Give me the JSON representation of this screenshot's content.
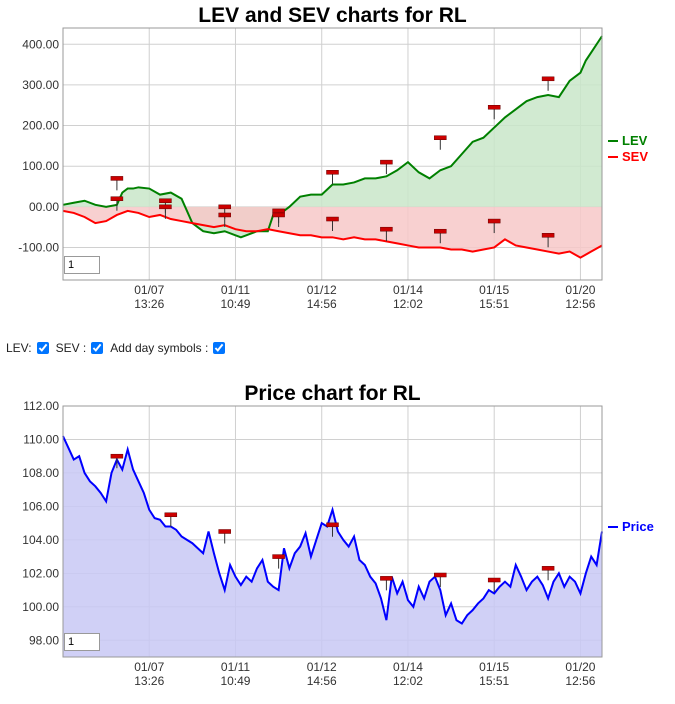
{
  "controls": {
    "lev_label": "LEV:",
    "sev_label": "SEV :",
    "day_label": "Add day symbols :",
    "lev_checked": true,
    "sev_checked": true,
    "day_checked": true
  },
  "chart_data": [
    {
      "type": "area",
      "title": "LEV and SEV charts for RL",
      "xlabel": "",
      "ylabel": "",
      "ylim": [
        -180,
        440
      ],
      "yticks": [
        "400.00",
        "300.00",
        "200.00",
        "100.00",
        "00.00",
        "-100.00"
      ],
      "ytick_values": [
        400,
        300,
        200,
        100,
        0,
        -100
      ],
      "x_ticks": [
        {
          "pos": 0.16,
          "date": "01/07",
          "time": "13:26"
        },
        {
          "pos": 0.32,
          "date": "01/11",
          "time": "10:49"
        },
        {
          "pos": 0.48,
          "date": "01/12",
          "time": "14:56"
        },
        {
          "pos": 0.64,
          "date": "01/14",
          "time": "12:02"
        },
        {
          "pos": 0.8,
          "date": "01/15",
          "time": "15:51"
        },
        {
          "pos": 0.96,
          "date": "01/20",
          "time": "12:56"
        }
      ],
      "legend_position": "right",
      "zoom_value": "1",
      "series": [
        {
          "name": "LEV",
          "color": "#008000",
          "fill": "#c9e6c9",
          "x": [
            0,
            0.02,
            0.04,
            0.06,
            0.08,
            0.1,
            0.11,
            0.12,
            0.13,
            0.14,
            0.16,
            0.18,
            0.2,
            0.22,
            0.24,
            0.25,
            0.26,
            0.28,
            0.3,
            0.32,
            0.33,
            0.34,
            0.36,
            0.38,
            0.39,
            0.4,
            0.42,
            0.44,
            0.46,
            0.48,
            0.5,
            0.52,
            0.54,
            0.56,
            0.58,
            0.6,
            0.62,
            0.64,
            0.66,
            0.68,
            0.7,
            0.72,
            0.74,
            0.76,
            0.78,
            0.8,
            0.82,
            0.84,
            0.86,
            0.88,
            0.9,
            0.92,
            0.94,
            0.96,
            0.97,
            0.98,
            1.0
          ],
          "y": [
            5,
            10,
            15,
            5,
            0,
            5,
            35,
            45,
            45,
            48,
            45,
            30,
            35,
            20,
            -40,
            -50,
            -60,
            -65,
            -60,
            -70,
            -75,
            -70,
            -60,
            -60,
            -20,
            -20,
            0,
            25,
            30,
            30,
            55,
            55,
            60,
            70,
            70,
            75,
            90,
            110,
            85,
            70,
            90,
            100,
            130,
            160,
            170,
            195,
            220,
            240,
            260,
            270,
            275,
            270,
            310,
            330,
            360,
            380,
            420
          ]
        },
        {
          "name": "SEV",
          "color": "#ff0000",
          "fill": "#f7c8c8",
          "x": [
            0,
            0.02,
            0.04,
            0.06,
            0.08,
            0.1,
            0.12,
            0.14,
            0.16,
            0.18,
            0.2,
            0.22,
            0.24,
            0.26,
            0.28,
            0.3,
            0.32,
            0.34,
            0.36,
            0.38,
            0.4,
            0.42,
            0.44,
            0.46,
            0.48,
            0.5,
            0.52,
            0.54,
            0.56,
            0.58,
            0.6,
            0.62,
            0.64,
            0.66,
            0.68,
            0.7,
            0.72,
            0.74,
            0.76,
            0.78,
            0.8,
            0.82,
            0.84,
            0.86,
            0.88,
            0.9,
            0.92,
            0.94,
            0.96,
            0.98,
            1.0
          ],
          "y": [
            -10,
            -15,
            -25,
            -40,
            -35,
            -20,
            -10,
            -15,
            -25,
            -20,
            -30,
            -35,
            -40,
            -45,
            -50,
            -45,
            -55,
            -60,
            -60,
            -55,
            -60,
            -65,
            -70,
            -70,
            -75,
            -75,
            -80,
            -75,
            -80,
            -80,
            -85,
            -90,
            -95,
            -100,
            -100,
            -100,
            -105,
            -105,
            -110,
            -105,
            -100,
            -80,
            -95,
            -100,
            -105,
            -110,
            -115,
            -110,
            -125,
            -110,
            -95
          ]
        }
      ],
      "markers": {
        "color": "#cc0000",
        "points": [
          [
            0.1,
            70
          ],
          [
            0.1,
            20
          ],
          [
            0.19,
            15
          ],
          [
            0.19,
            0
          ],
          [
            0.3,
            0
          ],
          [
            0.3,
            -20
          ],
          [
            0.4,
            -10
          ],
          [
            0.4,
            -20
          ],
          [
            0.5,
            -30
          ],
          [
            0.5,
            85
          ],
          [
            0.6,
            -55
          ],
          [
            0.6,
            110
          ],
          [
            0.7,
            -60
          ],
          [
            0.7,
            170
          ],
          [
            0.8,
            -35
          ],
          [
            0.8,
            245
          ],
          [
            0.9,
            -70
          ],
          [
            0.9,
            315
          ]
        ]
      }
    },
    {
      "type": "area",
      "title": "Price chart for RL",
      "xlabel": "",
      "ylabel": "",
      "ylim": [
        97,
        112
      ],
      "yticks": [
        "112.00",
        "110.00",
        "108.00",
        "106.00",
        "104.00",
        "102.00",
        "100.00",
        "98.00"
      ],
      "ytick_values": [
        112,
        110,
        108,
        106,
        104,
        102,
        100,
        98
      ],
      "x_ticks": [
        {
          "pos": 0.16,
          "date": "01/07",
          "time": "13:26"
        },
        {
          "pos": 0.32,
          "date": "01/11",
          "time": "10:49"
        },
        {
          "pos": 0.48,
          "date": "01/12",
          "time": "14:56"
        },
        {
          "pos": 0.64,
          "date": "01/14",
          "time": "12:02"
        },
        {
          "pos": 0.8,
          "date": "01/15",
          "time": "15:51"
        },
        {
          "pos": 0.96,
          "date": "01/20",
          "time": "12:56"
        }
      ],
      "legend_position": "right",
      "zoom_value": "1",
      "series": [
        {
          "name": "Price",
          "color": "#0000ff",
          "fill": "#c8c8f5",
          "x": [
            0,
            0.01,
            0.02,
            0.03,
            0.04,
            0.05,
            0.06,
            0.07,
            0.08,
            0.09,
            0.1,
            0.11,
            0.12,
            0.13,
            0.14,
            0.15,
            0.16,
            0.17,
            0.18,
            0.19,
            0.2,
            0.21,
            0.22,
            0.23,
            0.24,
            0.25,
            0.26,
            0.27,
            0.28,
            0.29,
            0.3,
            0.31,
            0.32,
            0.33,
            0.34,
            0.35,
            0.36,
            0.37,
            0.38,
            0.39,
            0.4,
            0.41,
            0.42,
            0.43,
            0.44,
            0.45,
            0.46,
            0.47,
            0.48,
            0.49,
            0.5,
            0.51,
            0.52,
            0.53,
            0.54,
            0.55,
            0.56,
            0.57,
            0.58,
            0.59,
            0.6,
            0.61,
            0.62,
            0.63,
            0.64,
            0.65,
            0.66,
            0.67,
            0.68,
            0.69,
            0.7,
            0.71,
            0.72,
            0.73,
            0.74,
            0.75,
            0.76,
            0.77,
            0.78,
            0.79,
            0.8,
            0.81,
            0.82,
            0.83,
            0.84,
            0.85,
            0.86,
            0.87,
            0.88,
            0.89,
            0.9,
            0.91,
            0.92,
            0.93,
            0.94,
            0.95,
            0.96,
            0.97,
            0.98,
            0.99,
            1.0
          ],
          "y": [
            110.2,
            109.5,
            108.8,
            109.0,
            108.0,
            107.5,
            107.2,
            106.8,
            106.3,
            108.0,
            108.8,
            108.2,
            109.4,
            108.2,
            107.5,
            106.8,
            105.8,
            105.3,
            105.2,
            104.8,
            104.8,
            104.6,
            104.2,
            104.0,
            103.8,
            103.5,
            103.2,
            104.5,
            103.2,
            102.0,
            101.0,
            102.5,
            101.8,
            101.3,
            101.8,
            101.5,
            102.3,
            102.8,
            101.5,
            101.2,
            101.0,
            103.5,
            102.3,
            103.2,
            103.6,
            104.4,
            103.0,
            104.0,
            105.0,
            104.8,
            105.8,
            104.5,
            104.0,
            103.6,
            104.2,
            102.8,
            102.5,
            101.8,
            101.4,
            100.5,
            99.2,
            101.8,
            100.8,
            101.5,
            100.4,
            100.0,
            101.2,
            100.5,
            101.5,
            101.8,
            101.0,
            99.5,
            100.2,
            99.2,
            99.0,
            99.5,
            99.8,
            100.2,
            100.5,
            101.0,
            100.8,
            101.2,
            101.5,
            101.2,
            102.5,
            101.8,
            101.0,
            101.5,
            101.8,
            101.3,
            100.5,
            101.5,
            102.0,
            101.2,
            101.8,
            101.5,
            100.8,
            102.0,
            103.0,
            102.5,
            104.5
          ]
        }
      ],
      "markers": {
        "color": "#cc0000",
        "points": [
          [
            0.1,
            109.0
          ],
          [
            0.2,
            105.5
          ],
          [
            0.3,
            104.5
          ],
          [
            0.4,
            103.0
          ],
          [
            0.5,
            104.9
          ],
          [
            0.6,
            101.7
          ],
          [
            0.7,
            101.9
          ],
          [
            0.8,
            101.6
          ],
          [
            0.9,
            102.3
          ]
        ]
      }
    }
  ]
}
